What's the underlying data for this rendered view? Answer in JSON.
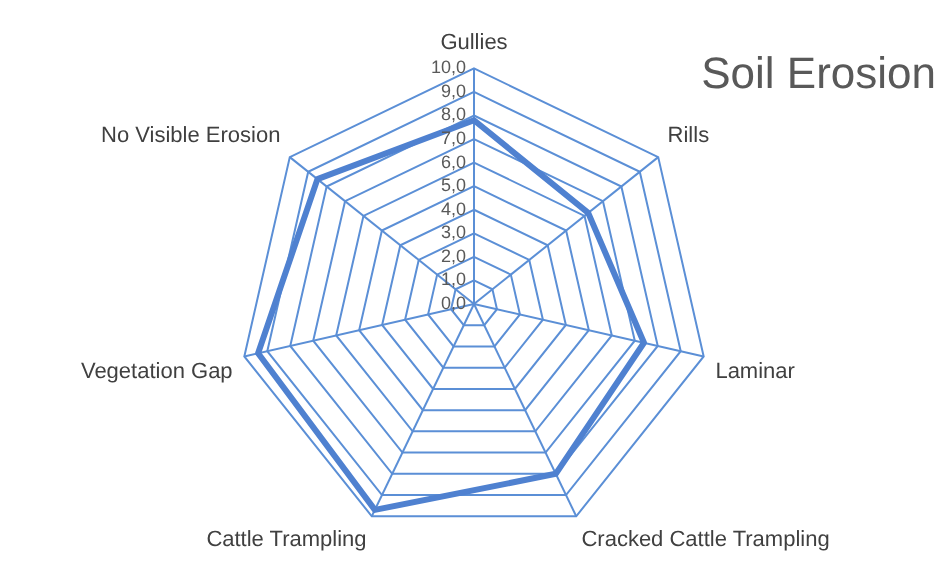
{
  "chart_data": {
    "type": "radar",
    "title": "Soil Erosion",
    "categories": [
      "Gullies",
      "Rills",
      "Laminar",
      "Cracked Cattle Trampling",
      "Cattle Trampling",
      "Vegetation Gap",
      "No Visible Erosion"
    ],
    "series": [
      {
        "color": "#4f81d0",
        "values": [
          7.8,
          6.2,
          7.4,
          8.0,
          9.7,
          9.4,
          8.5
        ]
      }
    ],
    "ylim": [
      0,
      10
    ],
    "yticks": [
      {
        "value": 0,
        "label": "0,0"
      },
      {
        "value": 1,
        "label": "1,0"
      },
      {
        "value": 2,
        "label": "2,0"
      },
      {
        "value": 3,
        "label": "3,0"
      },
      {
        "value": 4,
        "label": "4,0"
      },
      {
        "value": 5,
        "label": "5,0"
      },
      {
        "value": 6,
        "label": "6,0"
      },
      {
        "value": 7,
        "label": "7,0"
      },
      {
        "value": 8,
        "label": "8,0"
      },
      {
        "value": 9,
        "label": "9,0"
      },
      {
        "value": 10,
        "label": "10,0"
      }
    ],
    "grid": true,
    "legend": false,
    "marker": "none"
  }
}
